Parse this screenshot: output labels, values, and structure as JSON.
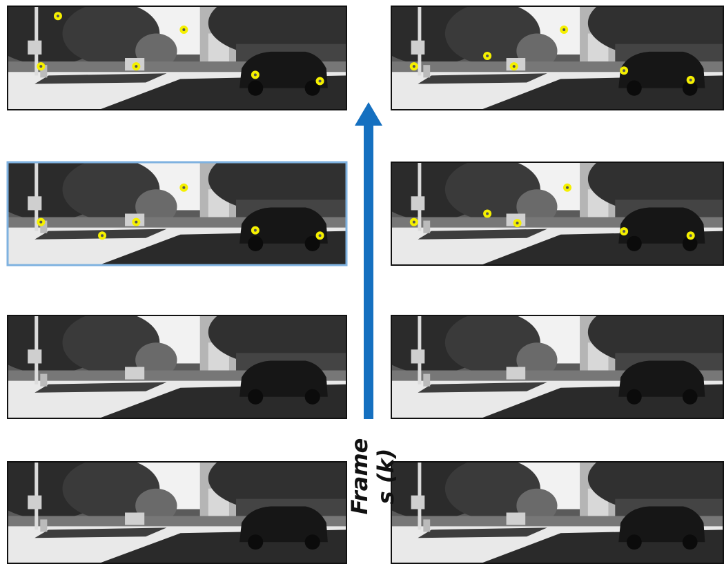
{
  "axis_label": {
    "lines": [
      "Frame",
      "s (k)"
    ]
  }
}
